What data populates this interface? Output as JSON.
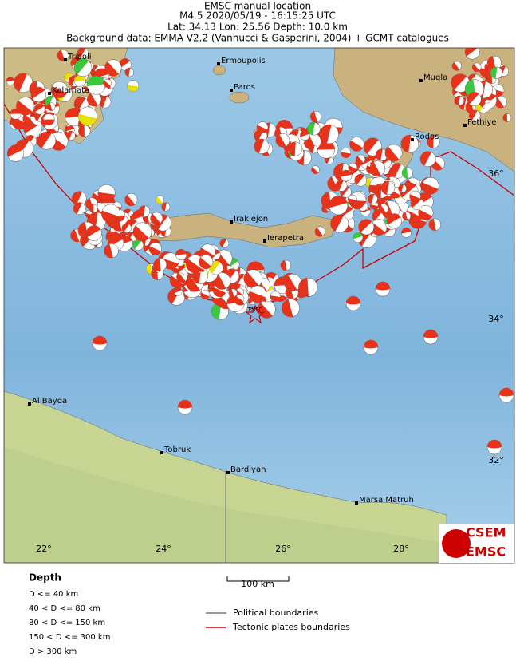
{
  "header": {
    "lines": [
      "EMSC manual location",
      "M4.5  2020/05/19 - 16:15:25 UTC",
      "Lat: 34.13    Lon: 25.56     Depth: 10.0 km",
      "Background data: EMMA V2.2 (Vannucci & Gasperini, 2004) + GCMT catalogues"
    ]
  },
  "map": {
    "places": [
      "Tripoli",
      "Ermoupolis",
      "Mugla",
      "Kalamata",
      "Paros",
      "Fethiye",
      "Rodos",
      "Iraklejon",
      "Ierapetra",
      "Al Bayda",
      "Tobruk",
      "Bardiyah",
      "Marsa Matruh"
    ],
    "epicenter_label": "EMSC",
    "lon_ticks": [
      "22°",
      "24°",
      "26°",
      "28°"
    ],
    "lat_ticks": [
      "36°",
      "34°",
      "32°"
    ]
  },
  "scale": {
    "label": "100 km"
  },
  "legend": {
    "depth_title": "Depth",
    "depth_items": [
      "D <= 40 km",
      "40 < D <= 80 km",
      "80 < D <= 150 km",
      "150 < D <= 300 km",
      "D > 300 km"
    ],
    "lines": [
      "Political boundaries",
      "Tectonic plates boundaries"
    ]
  },
  "logo": {
    "top": "CSEM",
    "bottom": "EMSC"
  }
}
